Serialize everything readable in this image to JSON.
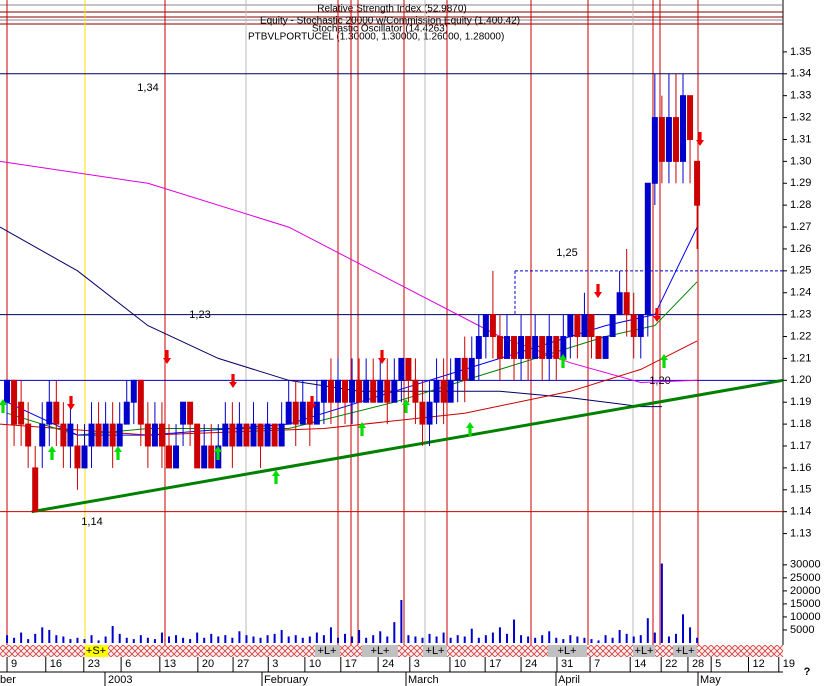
{
  "chart_data": {
    "type": "candlestick",
    "title": "PTBVLPORTUCEL (1.30000, 1.30000, 1.26000, 1.28000)",
    "indicators": [
      "Relative Strength Index (52.9870)",
      "Equity - Stochastic 20000 w/Commission Equity (1,400.42)",
      "Stochastic Oscillator (14.4263)"
    ],
    "x": [
      0,
      1,
      2,
      3,
      4,
      5,
      6,
      7,
      8,
      9,
      10,
      11,
      12,
      13,
      14,
      15,
      16,
      17,
      18,
      19,
      20,
      21,
      22,
      23,
      24,
      25,
      26,
      27,
      28,
      29,
      30,
      31,
      32,
      33,
      34,
      35,
      36,
      37,
      38,
      39,
      40,
      41,
      42,
      43,
      44,
      45,
      46,
      47,
      48,
      49,
      50,
      51,
      52,
      53,
      54,
      55,
      56,
      57,
      58,
      59,
      60,
      61,
      62,
      63,
      64,
      65,
      66,
      67,
      68,
      69,
      70,
      71,
      72,
      73,
      74,
      75,
      76,
      77,
      78,
      79,
      80,
      81,
      82,
      83,
      84,
      85,
      86,
      87,
      88,
      89,
      90,
      91,
      92,
      93,
      94,
      95,
      96,
      97,
      98
    ],
    "open": [
      1.19,
      1.2,
      1.19,
      1.18,
      1.16,
      1.17,
      1.18,
      1.19,
      1.18,
      1.17,
      1.17,
      1.16,
      1.17,
      1.18,
      1.17,
      1.18,
      1.17,
      1.18,
      1.19,
      1.2,
      1.18,
      1.17,
      1.18,
      1.17,
      1.16,
      1.18,
      1.19,
      1.18,
      1.16,
      1.17,
      1.16,
      1.17,
      1.18,
      1.17,
      1.18,
      1.17,
      1.18,
      1.17,
      1.18,
      1.17,
      1.18,
      1.19,
      1.18,
      1.19,
      1.18,
      1.19,
      1.2,
      1.19,
      1.2,
      1.19,
      1.2,
      1.19,
      1.2,
      1.19,
      1.2,
      1.19,
      1.2,
      1.21,
      1.2,
      1.19,
      1.18,
      1.19,
      1.2,
      1.19,
      1.2,
      1.21,
      1.2,
      1.21,
      1.22,
      1.23,
      1.22,
      1.21,
      1.22,
      1.21,
      1.22,
      1.21,
      1.22,
      1.21,
      1.22,
      1.21,
      1.22,
      1.23,
      1.22,
      1.23,
      1.22,
      1.21,
      1.22,
      1.23,
      1.24,
      1.23,
      1.22,
      1.23,
      1.29,
      1.32,
      1.3,
      1.32,
      1.3,
      1.33,
      1.3
    ],
    "high": [
      1.2,
      1.2,
      1.2,
      1.19,
      1.17,
      1.19,
      1.2,
      1.2,
      1.19,
      1.19,
      1.18,
      1.18,
      1.19,
      1.19,
      1.19,
      1.19,
      1.19,
      1.2,
      1.2,
      1.2,
      1.19,
      1.19,
      1.19,
      1.18,
      1.18,
      1.19,
      1.19,
      1.18,
      1.18,
      1.18,
      1.18,
      1.19,
      1.19,
      1.19,
      1.18,
      1.19,
      1.18,
      1.19,
      1.18,
      1.19,
      1.2,
      1.2,
      1.2,
      1.19,
      1.2,
      1.2,
      1.21,
      1.21,
      1.2,
      1.21,
      1.21,
      1.21,
      1.21,
      1.21,
      1.21,
      1.21,
      1.21,
      1.21,
      1.21,
      1.2,
      1.2,
      1.21,
      1.21,
      1.21,
      1.21,
      1.22,
      1.22,
      1.23,
      1.23,
      1.25,
      1.23,
      1.23,
      1.22,
      1.23,
      1.22,
      1.23,
      1.22,
      1.23,
      1.22,
      1.23,
      1.23,
      1.23,
      1.24,
      1.23,
      1.22,
      1.22,
      1.23,
      1.25,
      1.26,
      1.24,
      1.23,
      1.29,
      1.34,
      1.33,
      1.34,
      1.34,
      1.34,
      1.33,
      1.3
    ],
    "low": [
      1.18,
      1.17,
      1.17,
      1.16,
      1.14,
      1.16,
      1.17,
      1.17,
      1.16,
      1.16,
      1.15,
      1.16,
      1.16,
      1.17,
      1.17,
      1.16,
      1.17,
      1.18,
      1.18,
      1.17,
      1.16,
      1.17,
      1.16,
      1.16,
      1.16,
      1.17,
      1.17,
      1.16,
      1.16,
      1.16,
      1.16,
      1.17,
      1.16,
      1.17,
      1.17,
      1.17,
      1.16,
      1.17,
      1.17,
      1.17,
      1.18,
      1.17,
      1.18,
      1.17,
      1.18,
      1.18,
      1.18,
      1.19,
      1.18,
      1.18,
      1.19,
      1.19,
      1.19,
      1.19,
      1.18,
      1.19,
      1.19,
      1.19,
      1.18,
      1.17,
      1.17,
      1.18,
      1.18,
      1.19,
      1.19,
      1.19,
      1.2,
      1.2,
      1.21,
      1.21,
      1.2,
      1.21,
      1.2,
      1.2,
      1.2,
      1.21,
      1.2,
      1.2,
      1.2,
      1.21,
      1.21,
      1.21,
      1.22,
      1.21,
      1.21,
      1.21,
      1.22,
      1.23,
      1.22,
      1.21,
      1.21,
      1.22,
      1.28,
      1.29,
      1.29,
      1.29,
      1.29,
      1.29,
      1.26
    ],
    "close": [
      1.2,
      1.18,
      1.18,
      1.17,
      1.14,
      1.18,
      1.19,
      1.18,
      1.17,
      1.18,
      1.16,
      1.17,
      1.18,
      1.17,
      1.18,
      1.17,
      1.18,
      1.19,
      1.2,
      1.18,
      1.17,
      1.18,
      1.17,
      1.16,
      1.17,
      1.19,
      1.18,
      1.16,
      1.17,
      1.16,
      1.17,
      1.18,
      1.17,
      1.18,
      1.17,
      1.18,
      1.17,
      1.18,
      1.17,
      1.18,
      1.19,
      1.18,
      1.19,
      1.18,
      1.19,
      1.2,
      1.19,
      1.2,
      1.19,
      1.2,
      1.19,
      1.2,
      1.19,
      1.2,
      1.19,
      1.2,
      1.21,
      1.2,
      1.19,
      1.18,
      1.19,
      1.2,
      1.19,
      1.2,
      1.21,
      1.2,
      1.21,
      1.22,
      1.23,
      1.22,
      1.21,
      1.22,
      1.21,
      1.22,
      1.21,
      1.22,
      1.21,
      1.22,
      1.21,
      1.22,
      1.23,
      1.22,
      1.23,
      1.22,
      1.21,
      1.22,
      1.23,
      1.24,
      1.23,
      1.22,
      1.23,
      1.29,
      1.32,
      1.3,
      1.32,
      1.3,
      1.33,
      1.31,
      1.28
    ],
    "up_color": "#0000cc",
    "down_color": "#cc0000",
    "xlim": [
      -1,
      110.2
    ],
    "xticks": [
      {
        "value": 0,
        "label": "9"
      },
      {
        "value": 5.5,
        "label": "16"
      },
      {
        "value": 10.9,
        "label": "23"
      },
      {
        "value": 16.2,
        "label": "6"
      },
      {
        "value": 21.7,
        "label": "13"
      },
      {
        "value": 27.1,
        "label": "20"
      },
      {
        "value": 32.1,
        "label": "27"
      },
      {
        "value": 37.1,
        "label": "3"
      },
      {
        "value": 42.3,
        "label": "10"
      },
      {
        "value": 47.4,
        "label": "17"
      },
      {
        "value": 52.7,
        "label": "24"
      },
      {
        "value": 57.2,
        "label": "3"
      },
      {
        "value": 62.9,
        "label": "10"
      },
      {
        "value": 67.9,
        "label": "17"
      },
      {
        "value": 73,
        "label": "24"
      },
      {
        "value": 78.1,
        "label": "31"
      },
      {
        "value": 82.8,
        "label": "7"
      },
      {
        "value": 88.5,
        "label": "14"
      },
      {
        "value": 92.9,
        "label": "22"
      },
      {
        "value": 96.7,
        "label": "28"
      },
      {
        "value": 100,
        "label": "5"
      },
      {
        "value": 105.3,
        "label": "12"
      },
      {
        "value": 109.6,
        "label": "19"
      }
    ],
    "ylim": [
      1.1225,
      1.3737
    ],
    "yticks": [
      1.35,
      1.34,
      1.33,
      1.32,
      1.31,
      {
        "value": 1.3,
        "label": "1.30"
      },
      1.29,
      1.28,
      1.27,
      1.26,
      1.25,
      1.24,
      1.23,
      1.22,
      1.21,
      {
        "value": 1.2,
        "label": "1.20"
      },
      1.19,
      1.18,
      1.17,
      1.16,
      1.15,
      1.14,
      1.13
    ],
    "volume": {
      "color": "#0000cc",
      "ylim": [
        0,
        33000
      ],
      "yticks": [
        30000,
        25000,
        20000,
        15000,
        10000,
        5000
      ],
      "values": [
        3000,
        2000,
        4000,
        1500,
        3500,
        6000,
        5000,
        3000,
        2500,
        1500,
        2000,
        1500,
        3000,
        1000,
        2500,
        6500,
        3500,
        2000,
        1500,
        3000,
        2000,
        1500,
        4000,
        2500,
        3000,
        2000,
        1500,
        4000,
        2000,
        3500,
        2500,
        3000,
        2000,
        4500,
        3000,
        2500,
        2000,
        3000,
        3500,
        5000,
        2500,
        3000,
        2000,
        2500,
        4000,
        3000,
        6000,
        2000,
        3500,
        2500,
        5000,
        2000,
        3000,
        4500,
        2500,
        8000,
        16500,
        3000,
        2500,
        2000,
        3500,
        2500,
        4000,
        2000,
        3000,
        2500,
        5500,
        2000,
        3000,
        4000,
        6000,
        3500,
        9000,
        3000,
        2500,
        2000,
        3000,
        4500,
        2000,
        1500,
        3000,
        2500,
        2000,
        1500,
        1000,
        3000,
        2000,
        5000,
        3500,
        2500,
        3000,
        9500,
        4000,
        30500,
        2500,
        3500,
        11000,
        6000,
        2000
      ]
    },
    "lines": [
      {
        "color": "#000066",
        "x": [
          -1,
          10,
          20,
          30,
          40,
          50,
          60,
          70,
          80,
          90,
          93
        ],
        "values": [
          1.27,
          1.25,
          1.225,
          1.21,
          1.2,
          1.195,
          1.195,
          1.195,
          1.192,
          1.188,
          1.188
        ]
      },
      {
        "color": "#dd00dd",
        "x": [
          -1,
          20,
          40,
          55,
          70,
          80,
          90,
          98
        ],
        "values": [
          1.3,
          1.29,
          1.27,
          1.245,
          1.22,
          1.208,
          1.199,
          1.2
        ]
      },
      {
        "color": "#cc0000",
        "x": [
          -1,
          20,
          45,
          65,
          80,
          90,
          98
        ],
        "values": [
          1.18,
          1.175,
          1.178,
          1.185,
          1.195,
          1.205,
          1.218
        ]
      },
      {
        "color": "#008000",
        "x": [
          0,
          10,
          20,
          40,
          55,
          70,
          85,
          92,
          98
        ],
        "values": [
          1.185,
          1.175,
          1.178,
          1.178,
          1.19,
          1.205,
          1.22,
          1.225,
          1.245
        ]
      },
      {
        "color": "#0000ff",
        "x": [
          0,
          10,
          20,
          40,
          55,
          70,
          85,
          92,
          98
        ],
        "values": [
          1.19,
          1.175,
          1.175,
          1.18,
          1.195,
          1.21,
          1.225,
          1.23,
          1.27
        ]
      }
    ],
    "trendline": {
      "color": "#008000",
      "x": [
        3.5,
        110.2
      ],
      "values": [
        1.14,
        1.2
      ]
    },
    "levels": [
      {
        "value": 1.34,
        "label": "1,34",
        "color": "#000066"
      },
      {
        "value": 1.23,
        "label": "1,23",
        "color": "#000066"
      },
      {
        "value": 1.2,
        "label": "1,20",
        "color": "#0000cc"
      },
      {
        "value": 1.14,
        "label": "1,14",
        "color": "#cc0000"
      },
      {
        "value": 1.25,
        "label": "1,25",
        "color": "#0000cc"
      }
    ],
    "signals": [
      "+S+",
      "+L+",
      "+L+",
      "+L+",
      "+L+",
      "+L+",
      "+L+"
    ],
    "months": [
      "ber",
      "2003",
      "February",
      "March",
      "April",
      "May"
    ],
    "help": "?"
  }
}
